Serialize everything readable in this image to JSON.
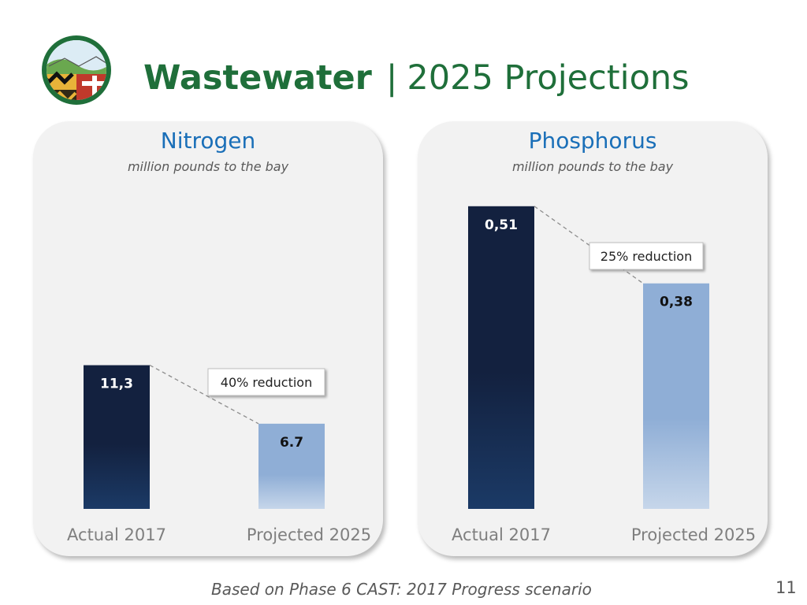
{
  "title": {
    "main": "Wastewater",
    "separator": "|",
    "sub": "2025 Projections"
  },
  "colors": {
    "title_green": "#1f6f3a",
    "panel_title_blue": "#1a6fb8",
    "actual_bar_top": "#13213f",
    "actual_bar_bottom": "#1b3a66",
    "projected_bar_top": "#8faed6",
    "projected_bar_bottom": "#c6d6ea"
  },
  "logo": {
    "icon": "maryland-state-seal-logo"
  },
  "panels": [
    {
      "title": "Nitrogen",
      "subtitle": "million pounds to the bay",
      "callout": "40% reduction"
    },
    {
      "title": "Phosphorus",
      "subtitle": "million pounds to the bay",
      "callout": "25% reduction"
    }
  ],
  "chart_data": [
    {
      "type": "bar",
      "title": "Nitrogen",
      "subtitle": "million pounds to the bay",
      "categories": [
        "Actual 2017",
        "Projected 2025"
      ],
      "values": [
        11.3,
        6.7
      ],
      "value_labels": [
        "11,3",
        "6.7"
      ],
      "annotation": "40% reduction",
      "ylim": [
        0,
        28
      ],
      "grid": false,
      "legend": "none"
    },
    {
      "type": "bar",
      "title": "Phosphorus",
      "subtitle": "million pounds to the bay",
      "categories": [
        "Actual 2017",
        "Projected 2025"
      ],
      "values": [
        0.51,
        0.38
      ],
      "value_labels": [
        "0,51",
        "0,38"
      ],
      "annotation": "25% reduction",
      "ylim": [
        0,
        0.6
      ],
      "grid": false,
      "legend": "none"
    }
  ],
  "footer": {
    "note": "Based on Phase 6 CAST: 2017 Progress scenario",
    "page_number": "11"
  }
}
